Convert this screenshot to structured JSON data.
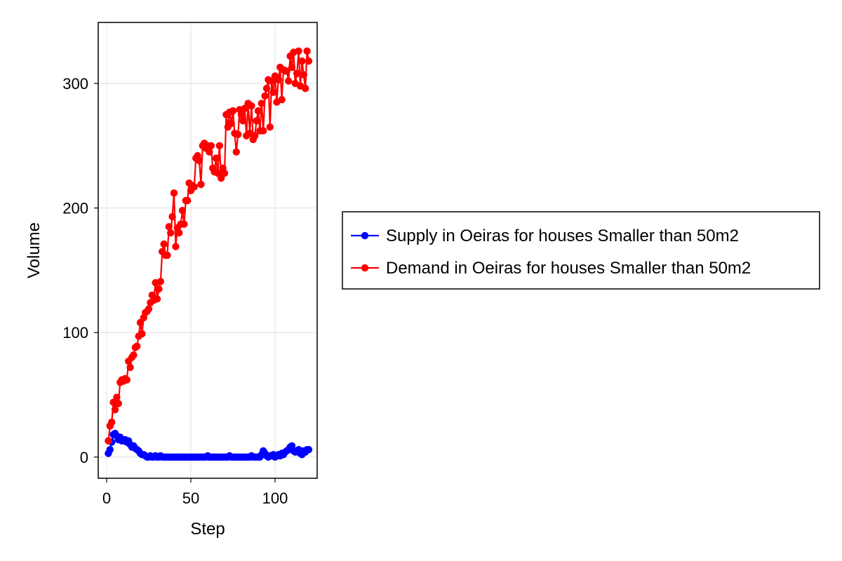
{
  "chart_data": {
    "type": "line",
    "xlabel": "Step",
    "ylabel": "Volume",
    "xlim": [
      -5,
      125
    ],
    "ylim": [
      -17,
      349
    ],
    "xticks": [
      0,
      50,
      100
    ],
    "yticks": [
      0,
      100,
      200,
      300
    ],
    "grid": true,
    "legend_position": "right",
    "series": [
      {
        "name": "Supply in Oeiras for houses Smaller than 50m2",
        "color": "#0000ff",
        "x": [
          1,
          2,
          3,
          4,
          5,
          6,
          7,
          8,
          9,
          10,
          11,
          12,
          13,
          14,
          15,
          16,
          17,
          18,
          19,
          20,
          21,
          22,
          23,
          24,
          25,
          26,
          27,
          28,
          29,
          30,
          31,
          32,
          33,
          34,
          35,
          36,
          37,
          38,
          39,
          40,
          41,
          42,
          43,
          44,
          45,
          46,
          47,
          48,
          49,
          50,
          51,
          52,
          53,
          54,
          55,
          56,
          57,
          58,
          59,
          60,
          61,
          62,
          63,
          64,
          65,
          66,
          67,
          68,
          69,
          70,
          71,
          72,
          73,
          74,
          75,
          76,
          77,
          78,
          79,
          80,
          81,
          82,
          83,
          84,
          85,
          86,
          87,
          88,
          89,
          90,
          91,
          92,
          93,
          94,
          95,
          96,
          97,
          98,
          99,
          100,
          101,
          102,
          103,
          104,
          105,
          106,
          107,
          108,
          109,
          110,
          111,
          112,
          113,
          114,
          115,
          116,
          117,
          118,
          119,
          120
        ],
        "values": [
          3,
          6,
          12,
          18,
          19,
          17,
          14,
          16,
          13,
          13,
          14,
          12,
          13,
          10,
          8,
          9,
          7,
          6,
          5,
          3,
          2,
          2,
          1,
          0,
          0,
          1,
          0,
          0,
          1,
          0,
          0,
          1,
          0,
          0,
          0,
          0,
          0,
          0,
          0,
          0,
          0,
          0,
          0,
          0,
          0,
          0,
          0,
          0,
          0,
          0,
          0,
          0,
          0,
          0,
          0,
          0,
          0,
          0,
          0,
          1,
          0,
          0,
          0,
          0,
          0,
          0,
          0,
          0,
          0,
          0,
          0,
          0,
          1,
          0,
          0,
          0,
          0,
          0,
          0,
          0,
          0,
          0,
          0,
          0,
          0,
          1,
          0,
          0,
          0,
          0,
          0,
          2,
          5,
          3,
          1,
          0,
          1,
          1,
          2,
          0,
          1,
          2,
          1,
          3,
          2,
          4,
          5,
          6,
          8,
          9,
          5,
          4,
          5,
          6,
          3,
          2,
          5,
          4,
          6,
          6
        ]
      },
      {
        "name": "Demand in Oeiras for houses Smaller than 50m2",
        "color": "#ff0000",
        "x": [
          1,
          2,
          3,
          4,
          5,
          6,
          7,
          8,
          9,
          10,
          11,
          12,
          13,
          14,
          15,
          16,
          17,
          18,
          19,
          20,
          21,
          22,
          23,
          24,
          25,
          26,
          27,
          28,
          29,
          30,
          31,
          32,
          33,
          34,
          35,
          36,
          37,
          38,
          39,
          40,
          41,
          42,
          43,
          44,
          45,
          46,
          47,
          48,
          49,
          50,
          51,
          52,
          53,
          54,
          55,
          56,
          57,
          58,
          59,
          60,
          61,
          62,
          63,
          64,
          65,
          66,
          67,
          68,
          69,
          70,
          71,
          72,
          73,
          74,
          75,
          76,
          77,
          78,
          79,
          80,
          81,
          82,
          83,
          84,
          85,
          86,
          87,
          88,
          89,
          90,
          91,
          92,
          93,
          94,
          95,
          96,
          97,
          98,
          99,
          100,
          101,
          102,
          103,
          104,
          105,
          106,
          107,
          108,
          109,
          110,
          111,
          112,
          113,
          114,
          115,
          116,
          117,
          118,
          119,
          120
        ],
        "values": [
          13,
          25,
          28,
          44,
          38,
          48,
          43,
          60,
          62,
          61,
          63,
          62,
          77,
          72,
          80,
          82,
          88,
          89,
          97,
          108,
          99,
          112,
          116,
          117,
          119,
          124,
          130,
          126,
          140,
          127,
          135,
          141,
          165,
          171,
          162,
          162,
          185,
          180,
          193,
          212,
          169,
          184,
          180,
          187,
          198,
          187,
          206,
          206,
          220,
          214,
          218,
          217,
          240,
          242,
          238,
          219,
          250,
          252,
          248,
          250,
          245,
          250,
          232,
          229,
          240,
          228,
          250,
          224,
          232,
          228,
          275,
          265,
          277,
          268,
          278,
          260,
          245,
          259,
          279,
          275,
          270,
          280,
          258,
          284,
          260,
          282,
          255,
          258,
          270,
          278,
          262,
          284,
          262,
          290,
          296,
          303,
          265,
          302,
          293,
          306,
          285,
          303,
          313,
          287,
          311,
          310,
          310,
          302,
          322,
          313,
          325,
          300,
          308,
          326,
          298,
          318,
          307,
          296,
          326,
          318
        ]
      }
    ]
  }
}
